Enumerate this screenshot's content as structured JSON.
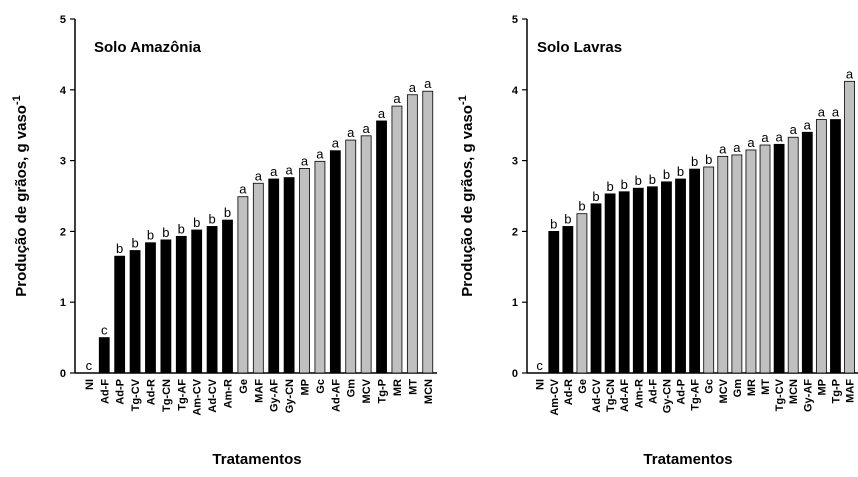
{
  "chart_data": [
    {
      "type": "bar",
      "title": "Solo Amazônia",
      "xlabel": "Tratamentos",
      "ylabel_main": "Produção de grãos, g vaso",
      "ylabel_sup": "-1",
      "ylim": [
        0,
        5
      ],
      "yticks": [
        0,
        1,
        2,
        3,
        4,
        5
      ],
      "grid": false,
      "legend": "none",
      "colors": {
        "black": "#000000",
        "gray": "#c0c0c0"
      },
      "categories": [
        "NI",
        "Ad-F",
        "Ad-P",
        "Tg-CV",
        "Ad-R",
        "Tg-CN",
        "Tg-AF",
        "Am-CV",
        "Ad-CV",
        "Am-R",
        "Ge",
        "MAF",
        "Gy-AF",
        "Gy-CN",
        "MP",
        "Gc",
        "Ad-AF",
        "Gm",
        "MCV",
        "Tg-P",
        "MR",
        "MT",
        "MCN"
      ],
      "values": [
        0,
        0.5,
        1.65,
        1.73,
        1.84,
        1.88,
        1.93,
        2.02,
        2.07,
        2.16,
        2.49,
        2.68,
        2.74,
        2.76,
        2.89,
        2.99,
        3.14,
        3.29,
        3.35,
        3.56,
        3.77,
        3.93,
        3.98
      ],
      "fill": [
        "black",
        "black",
        "black",
        "black",
        "black",
        "black",
        "black",
        "black",
        "black",
        "black",
        "gray",
        "gray",
        "black",
        "black",
        "gray",
        "gray",
        "black",
        "gray",
        "gray",
        "black",
        "gray",
        "gray",
        "gray"
      ],
      "data_labels": [
        "c",
        "c",
        "b",
        "b",
        "b",
        "b",
        "b",
        "b",
        "b",
        "b",
        "a",
        "a",
        "a",
        "a",
        "a",
        "a",
        "a",
        "a",
        "a",
        "a",
        "a",
        "a",
        "a"
      ]
    },
    {
      "type": "bar",
      "title": "Solo Lavras",
      "xlabel": "Tratamentos",
      "ylabel_main": "Produção de grãos, g vaso",
      "ylabel_sup": "-1",
      "ylim": [
        0,
        5
      ],
      "yticks": [
        0,
        1,
        2,
        3,
        4,
        5
      ],
      "grid": false,
      "legend": "none",
      "colors": {
        "black": "#000000",
        "gray": "#c0c0c0"
      },
      "categories": [
        "NI",
        "Am-CV",
        "Ad-R",
        "Ge",
        "Ad-CV",
        "Tg-CN",
        "Ad-AF",
        "Am-R",
        "Ad-F",
        "Gy-CN",
        "Ad-P",
        "Tg-AF",
        "Gc",
        "MCV",
        "Gm",
        "MR",
        "MT",
        "Tg-CV",
        "MCN",
        "Gy-AF",
        "MP",
        "Tg-P",
        "MAF"
      ],
      "values": [
        0,
        2.0,
        2.07,
        2.25,
        2.39,
        2.53,
        2.56,
        2.61,
        2.63,
        2.7,
        2.74,
        2.88,
        2.91,
        3.06,
        3.08,
        3.15,
        3.22,
        3.23,
        3.33,
        3.4,
        3.58,
        3.58,
        4.12
      ],
      "fill": [
        "black",
        "black",
        "black",
        "gray",
        "black",
        "black",
        "black",
        "black",
        "black",
        "black",
        "black",
        "black",
        "gray",
        "gray",
        "gray",
        "gray",
        "gray",
        "black",
        "gray",
        "black",
        "gray",
        "black",
        "gray"
      ],
      "data_labels": [
        "c",
        "b",
        "b",
        "b",
        "b",
        "b",
        "b",
        "b",
        "b",
        "b",
        "b",
        "b",
        "b",
        "a",
        "a",
        "a",
        "a",
        "a",
        "a",
        "a",
        "a",
        "a",
        "a"
      ]
    }
  ]
}
